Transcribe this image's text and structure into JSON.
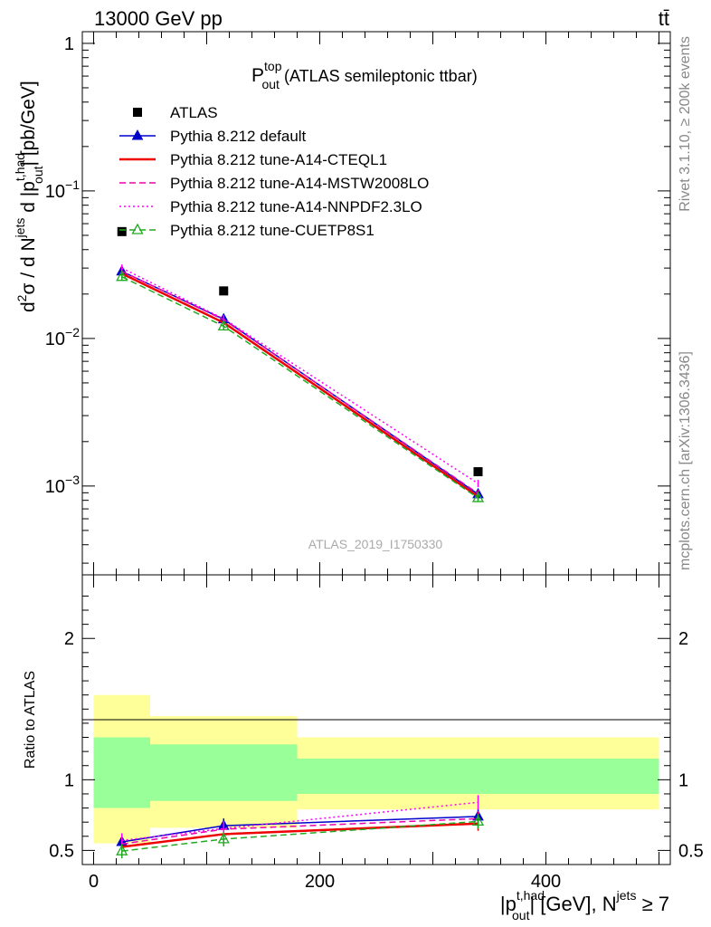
{
  "header": {
    "energy_label": "13000 GeV pp",
    "process_label": "tt̄"
  },
  "side_labels": {
    "rivet": "Rivet 3.1.10, ≥ 200k events",
    "mcplots": "mcplots.cern.ch [arXiv:1306.3436]"
  },
  "chart_data": [
    {
      "type": "line",
      "panel": "main",
      "title": {
        "main": "P",
        "sup": "top",
        "sub": "out",
        "rest": " (ATLAS semileptonic ttbar)"
      },
      "ylabel": {
        "part1": "d",
        "sup1": "2",
        "part2": "σ / d N",
        "sup2": "jets",
        "part3": " d |p",
        "sup3": "t,had",
        "sub3": "out",
        "part4": "| [pb/GeV]"
      },
      "yscale": "log",
      "ylim": [
        0.00025,
        1.2
      ],
      "xlim": [
        -10,
        510
      ],
      "ytick_labels": [
        {
          "value": 1,
          "base": "1",
          "exp": ""
        },
        {
          "value": 0.1,
          "base": "10",
          "exp": "−1"
        },
        {
          "value": 0.01,
          "base": "10",
          "exp": "−2"
        },
        {
          "value": 0.001,
          "base": "10",
          "exp": "−3"
        }
      ],
      "watermark": "ATLAS_2019_I1750330",
      "x": [
        25,
        115,
        340
      ],
      "data": {
        "name": "ATLAS",
        "values": [
          0.053,
          0.021,
          0.00125
        ],
        "color": "#000000"
      },
      "series": [
        {
          "name": "Pythia 8.212 default",
          "values": [
            0.0285,
            0.0135,
            0.00088
          ],
          "color": "#0000cc",
          "style": "solid",
          "marker": "triangle-filled"
        },
        {
          "name": "Pythia 8.212 tune-A14-CTEQL1",
          "values": [
            0.0275,
            0.0128,
            0.00085
          ],
          "color": "#ee0000",
          "style": "solid",
          "marker": "none"
        },
        {
          "name": "Pythia 8.212 tune-A14-MSTW2008LO",
          "values": [
            0.0285,
            0.0134,
            0.00089
          ],
          "color": "#ee00aa",
          "style": "dashed",
          "marker": "none"
        },
        {
          "name": "Pythia 8.212 tune-A14-NNPDF2.3LO",
          "values": [
            0.03,
            0.0136,
            0.00104
          ],
          "color": "#ff00ff",
          "style": "dotted",
          "marker": "none"
        },
        {
          "name": "Pythia 8.212 tune-CUETP8S1",
          "values": [
            0.0262,
            0.0121,
            0.00083
          ],
          "color": "#22aa22",
          "style": "dashed",
          "marker": "triangle-open"
        }
      ]
    },
    {
      "type": "line",
      "panel": "ratio",
      "ylabel": "Ratio to ATLAS",
      "ylim": [
        0.4,
        2.45
      ],
      "xlim": [
        -10,
        510
      ],
      "ytick_labels": [
        "0.5",
        "1",
        "2"
      ],
      "xtick_labels": [
        "0",
        "200",
        "400"
      ],
      "xlabel": {
        "part1": "|p",
        "sup": "t,had",
        "sub": "out",
        "part2": "| [GeV], N",
        "sup2": "jets",
        "part3": " ≥ 7"
      },
      "bin_edges": [
        0,
        50,
        180,
        500
      ],
      "band_outer": [
        [
          0.55,
          1.6
        ],
        [
          0.66,
          1.45
        ],
        [
          0.79,
          1.3
        ]
      ],
      "band_inner": [
        [
          0.8,
          1.3
        ],
        [
          0.85,
          1.25
        ],
        [
          0.9,
          1.15
        ]
      ],
      "band_colors": {
        "outer": "#ffff99",
        "inner": "#99ff99"
      },
      "x": [
        25,
        115,
        340
      ],
      "series": [
        {
          "name": "Pythia 8.212 default",
          "values": [
            0.56,
            0.675,
            0.74
          ],
          "color": "#0000cc",
          "style": "solid"
        },
        {
          "name": "Pythia 8.212 tune-A14-CTEQL1",
          "values": [
            0.525,
            0.615,
            0.69
          ],
          "color": "#ee0000",
          "style": "solid"
        },
        {
          "name": "Pythia 8.212 tune-A14-MSTW2008LO",
          "values": [
            0.545,
            0.65,
            0.725
          ],
          "color": "#ee00aa",
          "style": "dashed"
        },
        {
          "name": "Pythia 8.212 tune-A14-NNPDF2.3LO",
          "values": [
            0.57,
            0.655,
            0.84
          ],
          "color": "#ff00ff",
          "style": "dotted"
        },
        {
          "name": "Pythia 8.212 tune-CUETP8S1",
          "values": [
            0.495,
            0.58,
            0.705
          ],
          "color": "#22aa22",
          "style": "dashed"
        }
      ]
    }
  ]
}
